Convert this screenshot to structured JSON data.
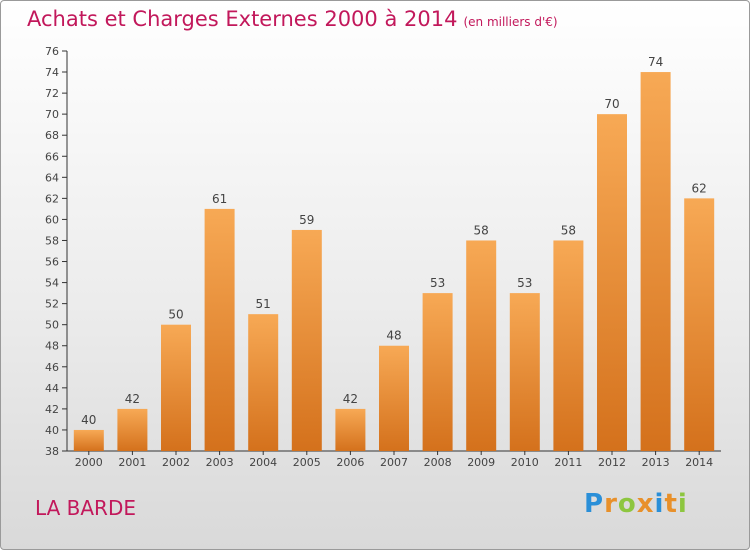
{
  "chart_data": {
    "type": "bar",
    "title": "Achats et Charges Externes 2000 à 2014",
    "subtitle": "(en milliers d'€)",
    "categories": [
      "2000",
      "2001",
      "2002",
      "2003",
      "2004",
      "2005",
      "2006",
      "2007",
      "2008",
      "2009",
      "2010",
      "2011",
      "2012",
      "2013",
      "2014"
    ],
    "values": [
      40,
      42,
      50,
      61,
      51,
      59,
      42,
      48,
      53,
      58,
      53,
      58,
      70,
      74,
      62
    ],
    "ylim": [
      38,
      76
    ],
    "ytick_step": 2,
    "grid": false,
    "bar_color": "#f0913a"
  },
  "footer": {
    "place": "LA BARDE",
    "logo": "Proxiti",
    "logo_colors": [
      "#2a8fd8",
      "#e8902a",
      "#8dc63f",
      "#e8902a",
      "#2a8fd8",
      "#e8902a",
      "#8dc63f"
    ]
  },
  "colors": {
    "title": "#c2185b",
    "axis": "#333333",
    "label": "#444444"
  }
}
